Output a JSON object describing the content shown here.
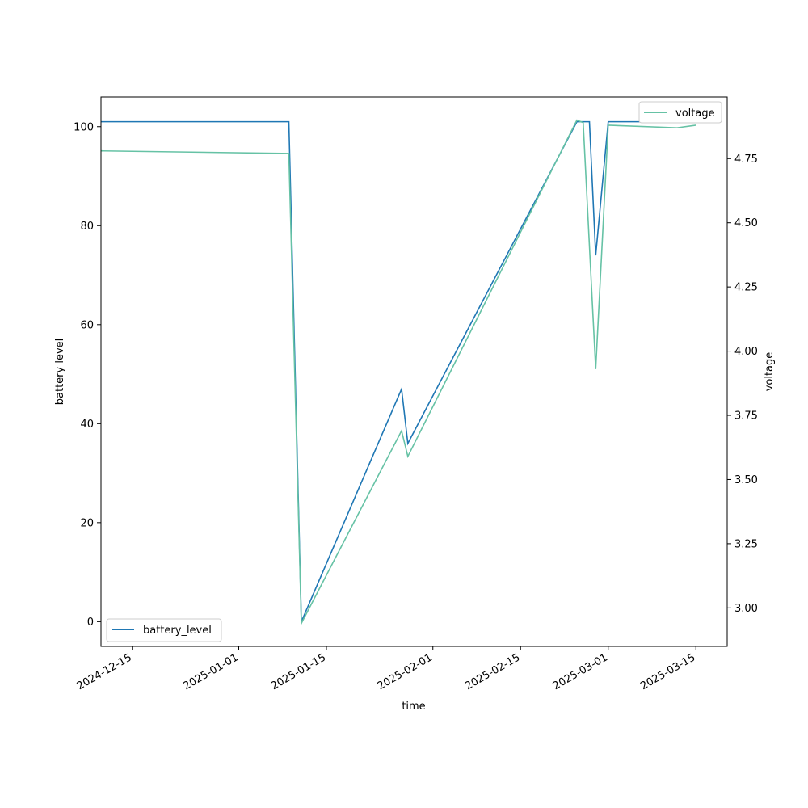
{
  "chart_data": {
    "type": "line",
    "xlabel": "time",
    "ylabel_left": "battery level",
    "ylabel_right": "voltage",
    "x_ticks": [
      "2024-12-15",
      "2025-01-01",
      "2025-01-15",
      "2025-02-01",
      "2025-02-15",
      "2025-03-01",
      "2025-03-15"
    ],
    "y_left_ticks": [
      0,
      20,
      40,
      60,
      80,
      100
    ],
    "y_right_ticks": [
      "3.00",
      "3.25",
      "3.50",
      "3.75",
      "4.00",
      "4.25",
      "4.50",
      "4.75"
    ],
    "xlim": [
      "2024-12-10",
      "2025-03-20"
    ],
    "ylim_left": [
      -5.0,
      106.0
    ],
    "ylim_right": [
      2.85,
      4.99
    ],
    "legend_left_position": "lower left",
    "legend_right_position": "upper right",
    "grid": false,
    "series": [
      {
        "name": "battery_level",
        "axis": "left",
        "color": "#1f77b4",
        "points": [
          [
            "2024-12-10",
            101
          ],
          [
            "2025-01-09",
            101
          ],
          [
            "2025-01-11",
            0
          ],
          [
            "2025-01-27",
            47
          ],
          [
            "2025-01-28",
            36
          ],
          [
            "2025-02-24",
            101
          ],
          [
            "2025-02-26",
            101
          ],
          [
            "2025-02-27",
            74
          ],
          [
            "2025-03-01",
            101
          ],
          [
            "2025-03-15",
            101
          ]
        ]
      },
      {
        "name": "voltage",
        "axis": "right",
        "color": "#66c2a5",
        "points": [
          [
            "2024-12-10",
            4.78
          ],
          [
            "2025-01-09",
            4.77
          ],
          [
            "2025-01-11",
            2.94
          ],
          [
            "2025-01-27",
            3.69
          ],
          [
            "2025-01-28",
            3.59
          ],
          [
            "2025-02-24",
            4.9
          ],
          [
            "2025-02-25",
            4.89
          ],
          [
            "2025-02-27",
            3.93
          ],
          [
            "2025-03-01",
            4.88
          ],
          [
            "2025-03-12",
            4.87
          ],
          [
            "2025-03-15",
            4.88
          ]
        ]
      }
    ]
  }
}
